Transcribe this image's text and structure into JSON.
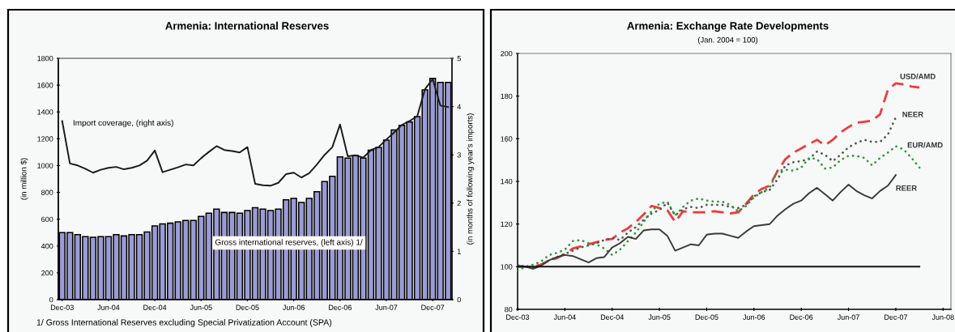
{
  "chart_data": [
    {
      "type": "bar",
      "title": "Armenia: International Reserves",
      "ylabel": "(in million $)",
      "y2label": "(in months of following year's imports)",
      "categories": [
        "Dec-03",
        null,
        null,
        null,
        null,
        null,
        "Jun-04",
        null,
        null,
        null,
        null,
        null,
        "Dec-04",
        null,
        null,
        null,
        null,
        null,
        "Jun-05",
        null,
        null,
        null,
        null,
        null,
        "Dec-05",
        null,
        null,
        null,
        null,
        null,
        "Jun-06",
        null,
        null,
        null,
        null,
        null,
        "Dec-06",
        null,
        null,
        null,
        null,
        null,
        "Jun-07",
        null,
        null,
        null,
        null,
        null,
        "Dec-07",
        null,
        null
      ],
      "series": [
        {
          "name": "Gross international reserves, (left axis) 1/",
          "type": "bar",
          "color": "#9b9bd7",
          "values": [
            500,
            500,
            485,
            470,
            465,
            470,
            470,
            485,
            475,
            485,
            485,
            505,
            550,
            565,
            570,
            580,
            590,
            590,
            620,
            645,
            675,
            650,
            650,
            645,
            665,
            685,
            675,
            665,
            675,
            745,
            755,
            725,
            755,
            805,
            880,
            920,
            1065,
            1055,
            1075,
            1055,
            1115,
            1135,
            1190,
            1265,
            1300,
            1325,
            1365,
            1565,
            1650,
            1620,
            1620
          ]
        },
        {
          "name": "Import coverage, (right axis)",
          "type": "line",
          "axis": "y2",
          "color": "#1a1a1a",
          "line_style": "solid",
          "values": [
            3.7,
            2.82,
            2.78,
            2.71,
            2.63,
            2.69,
            2.73,
            2.75,
            2.7,
            2.73,
            2.78,
            2.88,
            3.09,
            2.64,
            2.69,
            2.74,
            2.8,
            2.78,
            2.93,
            3.06,
            3.18,
            3.1,
            3.08,
            3.05,
            3.16,
            2.4,
            2.37,
            2.36,
            2.42,
            2.6,
            2.63,
            2.53,
            2.62,
            2.8,
            3.0,
            3.16,
            3.63,
            2.97,
            2.99,
            2.94,
            3.1,
            3.16,
            3.32,
            3.46,
            3.62,
            3.7,
            3.8,
            4.36,
            4.57,
            4.02,
            3.99
          ]
        }
      ],
      "ylim": [
        0,
        1800
      ],
      "yticks": [
        0,
        200,
        400,
        600,
        800,
        1000,
        1200,
        1400,
        1600,
        1800
      ],
      "y2lim": [
        0,
        5
      ],
      "y2ticks": [
        0,
        1,
        2,
        3,
        4,
        5
      ],
      "annotations": [
        "1/ Gross International Reserves excluding Special Privatization Account (SPA)"
      ]
    },
    {
      "type": "line",
      "title": "Armenia: Exchange Rate Developments",
      "subtitle": "(Jan. 2004 = 100)",
      "x": [
        "2003-12",
        "2004-01",
        "2004-02",
        "2004-03",
        "2004-04",
        "2004-05",
        "2004-06",
        "2004-07",
        "2004-08",
        "2004-09",
        "2004-10",
        "2004-11",
        "2004-12",
        "2005-01",
        "2005-02",
        "2005-03",
        "2005-04",
        "2005-05",
        "2005-06",
        "2005-07",
        "2005-08",
        "2005-09",
        "2005-10",
        "2005-11",
        "2005-12",
        "2006-01",
        "2006-02",
        "2006-03",
        "2006-04",
        "2006-05",
        "2006-06",
        "2006-07",
        "2006-08",
        "2006-09",
        "2006-10",
        "2006-11",
        "2006-12",
        "2007-01",
        "2007-02",
        "2007-03",
        "2007-04",
        "2007-05",
        "2007-06",
        "2007-07",
        "2007-08",
        "2007-09",
        "2007-10",
        "2007-11",
        "2007-12",
        "2008-01",
        "2008-02",
        "2008-03"
      ],
      "series": [
        {
          "name": "USD/AMD",
          "color": "#f03a3a",
          "line_style": "dashed",
          "values": [
            100,
            100,
            100,
            101,
            103,
            104,
            106,
            108.5,
            109.5,
            110.5,
            111.5,
            112.5,
            113,
            116,
            118,
            121,
            124.5,
            128.5,
            127.5,
            126.5,
            121,
            126,
            125.5,
            125.5,
            125.5,
            126,
            125.5,
            125,
            125.5,
            129.5,
            134,
            136.5,
            138,
            145,
            150.5,
            153.5,
            155.5,
            157.5,
            159.5,
            157,
            159.5,
            163,
            165.5,
            167.5,
            168,
            168.5,
            171.5,
            183,
            186,
            185.5,
            184.5,
            184
          ]
        },
        {
          "name": "NEER",
          "color": "#555555",
          "line_style": "dotted",
          "values": [
            101,
            100,
            99.5,
            101,
            103,
            104.5,
            106,
            107.5,
            109,
            110,
            111,
            112.5,
            113.5,
            112.5,
            116,
            118.5,
            122,
            125,
            126.5,
            130,
            124,
            127,
            128,
            127.5,
            129,
            129,
            129,
            128,
            127.5,
            129,
            133,
            135,
            136,
            141,
            147.5,
            149,
            149.5,
            150.5,
            154,
            152.5,
            149.5,
            152.5,
            156,
            158,
            159.5,
            158.5,
            158.5,
            162,
            170,
            null,
            null,
            null
          ]
        },
        {
          "name": "EUR/AMD",
          "color": "#2f9a3a",
          "line_style": "dotted",
          "values": [
            98,
            100,
            101,
            102.5,
            105.5,
            106.5,
            108,
            112,
            112.5,
            111,
            110.5,
            108.5,
            105.5,
            108,
            112,
            116,
            121,
            126,
            129.5,
            130.5,
            124,
            128,
            131,
            132,
            131,
            130.5,
            130.5,
            129,
            126,
            128.5,
            132.5,
            135,
            137,
            145,
            145.5,
            145,
            146.5,
            151,
            150.5,
            146,
            146.5,
            150,
            152,
            152,
            151,
            147.5,
            151,
            153.5,
            156.5,
            155,
            151,
            146.5
          ]
        },
        {
          "name": "REER",
          "color": "#3a3a3a",
          "line_style": "solid",
          "values": [
            100.5,
            100,
            99,
            100.5,
            103,
            104.5,
            105.5,
            105,
            103.5,
            102,
            104,
            104.5,
            109,
            111,
            114,
            113,
            117,
            117.5,
            117.5,
            114.5,
            107.5,
            109,
            110.5,
            110,
            115,
            115.5,
            115.5,
            114.5,
            113.5,
            116.5,
            119,
            119.5,
            120,
            124,
            127,
            129.5,
            131,
            134.5,
            137,
            134,
            131,
            135,
            138.5,
            135.5,
            133.5,
            132,
            135.5,
            138,
            143,
            null,
            null,
            null
          ]
        },
        {
          "color": "#111111",
          "line_style": "solid",
          "x": [
            "2003-12",
            "2008-03"
          ],
          "values": [
            100,
            100
          ]
        }
      ],
      "xlim": [
        "2003-12",
        "2008-07"
      ],
      "xticks": [
        {
          "value": "2003-12",
          "label": "Dec-03"
        },
        {
          "value": "2004-06",
          "label": "Jun-04"
        },
        {
          "value": "2004-12",
          "label": "Dec-04"
        },
        {
          "value": "2005-06",
          "label": "Jun-05"
        },
        {
          "value": "2005-12",
          "label": "Dec-05"
        },
        {
          "value": "2006-06",
          "label": "Jun-06"
        },
        {
          "value": "2006-12",
          "label": "Dec-06"
        },
        {
          "value": "2007-06",
          "label": "Jun-07"
        },
        {
          "value": "2007-12",
          "label": "Dec-07"
        },
        {
          "value": "2008-06",
          "label": "Jun-08"
        }
      ],
      "ylim": [
        80,
        200
      ],
      "yticks": [
        80,
        100,
        120,
        140,
        160,
        180,
        200
      ]
    }
  ]
}
